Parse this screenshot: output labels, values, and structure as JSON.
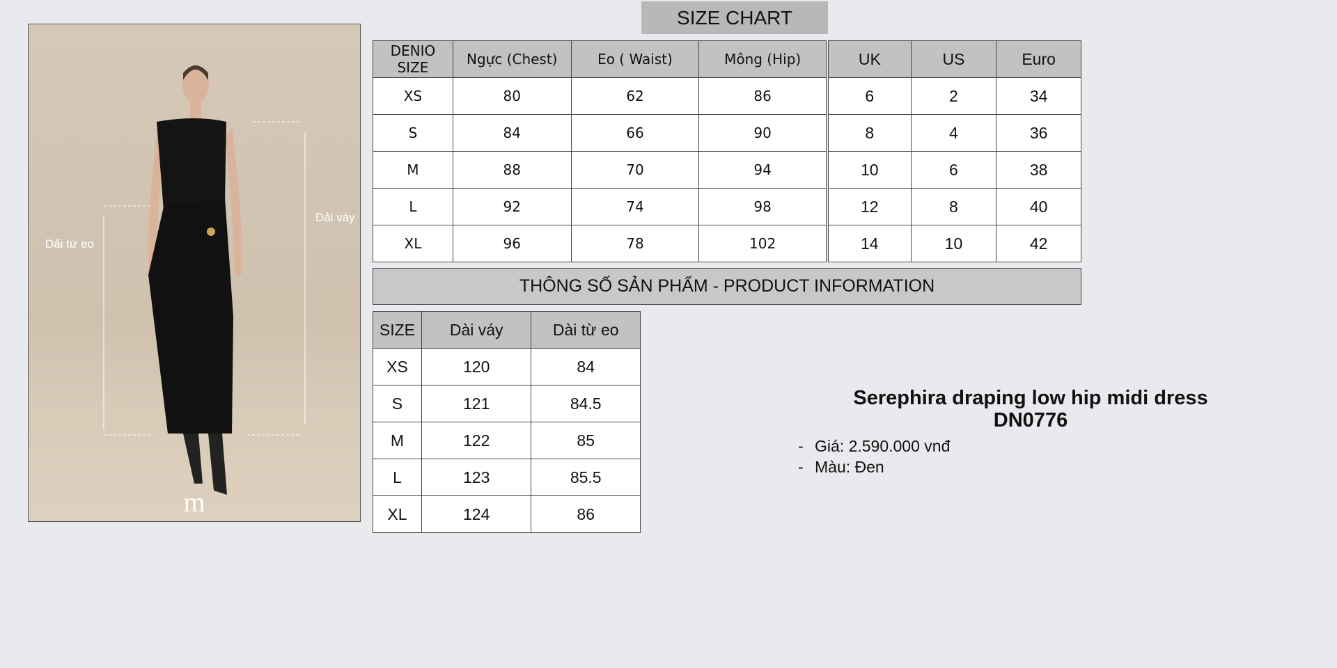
{
  "title": "SIZE CHART",
  "photo": {
    "label_waist": "Dải từ eo",
    "label_dress": "Dải váy",
    "logo": "m"
  },
  "size_table": {
    "headers": [
      "DENIO SIZE",
      "Ngực (Chest)",
      "Eo ( Waist)",
      "Mông (Hip)"
    ],
    "rows": [
      [
        "XS",
        "80",
        "62",
        "86"
      ],
      [
        "S",
        "84",
        "66",
        "90"
      ],
      [
        "M",
        "88",
        "70",
        "94"
      ],
      [
        "L",
        "92",
        "74",
        "98"
      ],
      [
        "XL",
        "96",
        "78",
        "102"
      ]
    ]
  },
  "intl_table": {
    "headers": [
      "UK",
      "US",
      "Euro"
    ],
    "rows": [
      [
        "6",
        "2",
        "34"
      ],
      [
        "8",
        "4",
        "36"
      ],
      [
        "10",
        "6",
        "38"
      ],
      [
        "12",
        "8",
        "40"
      ],
      [
        "14",
        "10",
        "42"
      ]
    ]
  },
  "info_bar": "THÔNG SỐ SẢN PHẨM - PRODUCT INFORMATION",
  "length_table": {
    "headers": [
      "SIZE",
      "Dài váy",
      "Dài từ eo"
    ],
    "rows": [
      [
        "XS",
        "120",
        "84"
      ],
      [
        "S",
        "121",
        "84.5"
      ],
      [
        "M",
        "122",
        "85"
      ],
      [
        "L",
        "123",
        "85.5"
      ],
      [
        "XL",
        "124",
        "86"
      ]
    ]
  },
  "product": {
    "name": "Serephira draping low hip midi dress",
    "code": "DN0776",
    "bullets": [
      "Giá: 2.590.000 vnđ",
      "Màu: Đen"
    ]
  }
}
